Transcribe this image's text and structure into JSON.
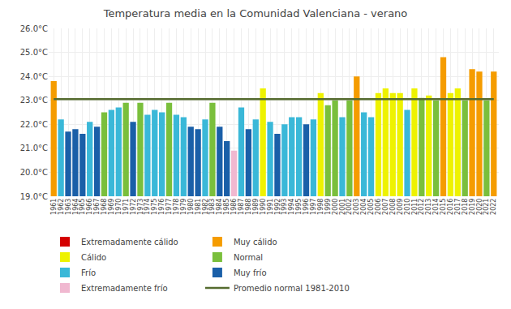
{
  "chart_data": {
    "type": "bar",
    "title": "Temperatura media en la Comunidad Valenciana - verano",
    "categories": [
      "1961",
      "1962",
      "1963",
      "1964",
      "1965",
      "1966",
      "1967",
      "1968",
      "1969",
      "1970",
      "1971",
      "1972",
      "1973",
      "1974",
      "1975",
      "1976",
      "1977",
      "1978",
      "1979",
      "1980",
      "1981",
      "1982",
      "1983",
      "1984",
      "1985",
      "1986",
      "1987",
      "1988",
      "1989",
      "1990",
      "1991",
      "1992",
      "1993",
      "1994",
      "1995",
      "1996",
      "1997",
      "1998",
      "1999",
      "2000",
      "2001",
      "2002",
      "2003",
      "2004",
      "2005",
      "2006",
      "2007",
      "2008",
      "2009",
      "2010",
      "2011",
      "2012",
      "2013",
      "2014",
      "2015",
      "2016",
      "2017",
      "2018",
      "2019",
      "2020",
      "2021",
      "2022"
    ],
    "series": [
      {
        "name": "Extremadamente cálido",
        "color": "#d40000",
        "values": [
          null,
          null,
          null,
          null,
          null,
          null,
          null,
          null,
          null,
          null,
          null,
          null,
          null,
          null,
          null,
          null,
          null,
          null,
          null,
          null,
          null,
          null,
          null,
          null,
          null,
          null,
          null,
          null,
          null,
          null,
          null,
          null,
          null,
          null,
          null,
          null,
          null,
          null,
          null,
          null,
          null,
          null,
          null,
          null,
          null,
          null,
          null,
          null,
          null,
          null,
          null,
          null,
          null,
          null,
          null,
          null,
          null,
          null,
          null,
          null,
          null,
          null
        ]
      },
      {
        "name": "Muy cálido",
        "color": "#f59c00",
        "values": [
          23.8,
          null,
          null,
          null,
          null,
          null,
          null,
          null,
          null,
          null,
          null,
          null,
          null,
          null,
          null,
          null,
          null,
          null,
          null,
          null,
          null,
          null,
          null,
          null,
          null,
          null,
          null,
          null,
          null,
          null,
          null,
          null,
          null,
          null,
          null,
          null,
          null,
          null,
          null,
          null,
          null,
          null,
          24.0,
          null,
          null,
          null,
          null,
          null,
          null,
          null,
          null,
          null,
          null,
          null,
          24.8,
          null,
          null,
          null,
          24.3,
          24.2,
          null,
          24.2
        ]
      },
      {
        "name": "Cálido",
        "color": "#eef200",
        "values": [
          null,
          null,
          null,
          null,
          null,
          null,
          null,
          null,
          null,
          null,
          null,
          null,
          null,
          null,
          null,
          null,
          null,
          null,
          null,
          null,
          null,
          null,
          null,
          null,
          null,
          null,
          null,
          null,
          null,
          23.5,
          null,
          null,
          null,
          null,
          null,
          null,
          null,
          23.3,
          null,
          null,
          null,
          null,
          null,
          null,
          null,
          23.3,
          23.5,
          23.3,
          23.3,
          null,
          23.5,
          null,
          23.2,
          null,
          null,
          23.3,
          23.5,
          null,
          null,
          null,
          null,
          null
        ]
      },
      {
        "name": "Normal",
        "color": "#7abf3c",
        "values": [
          null,
          null,
          null,
          null,
          null,
          null,
          null,
          22.5,
          null,
          null,
          22.9,
          null,
          22.9,
          null,
          null,
          null,
          22.9,
          null,
          null,
          null,
          null,
          null,
          22.9,
          null,
          null,
          null,
          null,
          null,
          null,
          null,
          null,
          null,
          null,
          null,
          null,
          null,
          null,
          null,
          22.8,
          23.0,
          null,
          23.0,
          null,
          null,
          null,
          null,
          null,
          null,
          null,
          null,
          null,
          23.1,
          null,
          23.0,
          null,
          null,
          null,
          23.0,
          null,
          null,
          23.0,
          null
        ]
      },
      {
        "name": "Frío",
        "color": "#3ab8d8",
        "values": [
          null,
          22.2,
          null,
          null,
          null,
          22.1,
          null,
          null,
          22.6,
          22.7,
          null,
          null,
          null,
          22.4,
          22.6,
          22.5,
          null,
          22.4,
          22.3,
          null,
          null,
          22.2,
          null,
          null,
          null,
          null,
          22.7,
          null,
          22.2,
          null,
          22.1,
          null,
          22.0,
          22.3,
          22.3,
          null,
          22.2,
          null,
          null,
          null,
          22.3,
          null,
          null,
          22.5,
          22.3,
          null,
          null,
          null,
          null,
          22.6,
          null,
          null,
          null,
          null,
          null,
          null,
          null,
          null,
          null,
          null,
          null,
          null
        ]
      },
      {
        "name": "Muy frío",
        "color": "#1a5fa8",
        "values": [
          null,
          null,
          21.7,
          21.8,
          21.6,
          null,
          21.9,
          null,
          null,
          null,
          null,
          22.1,
          null,
          null,
          null,
          null,
          null,
          null,
          null,
          21.9,
          21.8,
          null,
          null,
          21.9,
          21.3,
          null,
          null,
          21.8,
          null,
          null,
          null,
          21.6,
          null,
          null,
          null,
          22.0,
          null,
          null,
          null,
          null,
          null,
          null,
          null,
          null,
          null,
          null,
          null,
          null,
          null,
          null,
          null,
          null,
          null,
          null,
          null,
          null,
          null,
          null,
          null,
          null,
          null,
          null
        ]
      },
      {
        "name": "Extremadamente frío",
        "color": "#f0b8d0",
        "values": [
          null,
          null,
          null,
          null,
          null,
          null,
          null,
          null,
          null,
          null,
          null,
          null,
          null,
          null,
          null,
          null,
          null,
          null,
          null,
          null,
          null,
          null,
          null,
          null,
          null,
          20.9,
          null,
          null,
          null,
          null,
          null,
          null,
          null,
          null,
          null,
          null,
          null,
          null,
          null,
          null,
          null,
          null,
          null,
          null,
          null,
          null,
          null,
          null,
          null,
          null,
          null,
          null,
          null,
          null,
          null,
          null,
          null,
          null,
          null,
          null,
          null,
          null
        ]
      },
      {
        "name": "Promedio normal 1981-2010",
        "type": "line",
        "color": "#556b2f",
        "values": [
          23.05,
          23.05,
          23.05,
          23.05,
          23.05,
          23.05,
          23.05,
          23.05,
          23.05,
          23.05,
          23.05,
          23.05,
          23.05,
          23.05,
          23.05,
          23.05,
          23.05,
          23.05,
          23.05,
          23.05,
          23.05,
          23.05,
          23.05,
          23.05,
          23.05,
          23.05,
          23.05,
          23.05,
          23.05,
          23.05,
          23.05,
          23.05,
          23.05,
          23.05,
          23.05,
          23.05,
          23.05,
          23.05,
          23.05,
          23.05,
          23.05,
          23.05,
          23.05,
          23.05,
          23.05,
          23.05,
          23.05,
          23.05,
          23.05,
          23.05,
          23.05,
          23.05,
          23.05,
          23.05,
          23.05,
          23.05,
          23.05,
          23.05,
          23.05,
          23.05,
          23.05,
          23.05
        ]
      }
    ],
    "ylim": [
      19.0,
      26.0
    ],
    "yticks": [
      {
        "value": 19.0,
        "label": "19.0°C"
      },
      {
        "value": 20.0,
        "label": "20.0°C"
      },
      {
        "value": 21.0,
        "label": "21.0°C"
      },
      {
        "value": 22.0,
        "label": "22.0°C"
      },
      {
        "value": 23.0,
        "label": "23.0°C"
      },
      {
        "value": 24.0,
        "label": "24.0°C"
      },
      {
        "value": 25.0,
        "label": "25.0°C"
      },
      {
        "value": 26.0,
        "label": "26.0°C"
      }
    ],
    "grid": true,
    "legend": "bottom"
  }
}
